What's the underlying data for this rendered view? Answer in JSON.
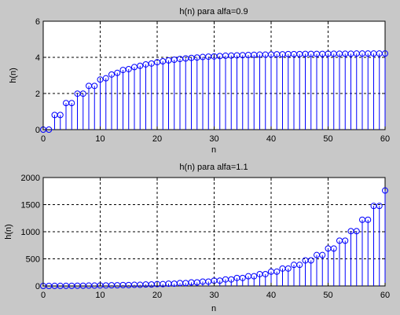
{
  "figure": {
    "background": "#c8c8c8"
  },
  "chart_data": [
    {
      "type": "stem",
      "title": "h(n) para alfa=0.9",
      "xlabel": "n",
      "ylabel": "h(n)",
      "xlim": [
        0,
        60
      ],
      "ylim": [
        0,
        6
      ],
      "xticks": [
        0,
        10,
        20,
        30,
        40,
        50,
        60
      ],
      "yticks": [
        0,
        2,
        4,
        6
      ],
      "grid": true,
      "color": "#0000ff",
      "x": [
        0,
        1,
        2,
        3,
        4,
        5,
        6,
        7,
        8,
        9,
        10,
        11,
        12,
        13,
        14,
        15,
        16,
        17,
        18,
        19,
        20,
        21,
        22,
        23,
        24,
        25,
        26,
        27,
        28,
        29,
        30,
        31,
        32,
        33,
        34,
        35,
        36,
        37,
        38,
        39,
        40,
        41,
        42,
        43,
        44,
        45,
        46,
        47,
        48,
        49,
        50,
        51,
        52,
        53,
        54,
        55,
        56,
        57,
        58,
        59,
        60
      ],
      "y": [
        0,
        0,
        0.81,
        0.81,
        1.47,
        1.47,
        1.99,
        1.99,
        2.42,
        2.42,
        2.77,
        2.84,
        3.05,
        3.14,
        3.3,
        3.35,
        3.46,
        3.53,
        3.61,
        3.66,
        3.73,
        3.78,
        3.83,
        3.87,
        3.91,
        3.94,
        3.97,
        3.99,
        4.02,
        4.04,
        4.05,
        4.07,
        4.09,
        4.1,
        4.11,
        4.12,
        4.13,
        4.14,
        4.15,
        4.15,
        4.16,
        4.17,
        4.17,
        4.18,
        4.18,
        4.18,
        4.19,
        4.19,
        4.19,
        4.19,
        4.2,
        4.2,
        4.2,
        4.2,
        4.2,
        4.21,
        4.21,
        4.21,
        4.21,
        4.21,
        4.21
      ]
    },
    {
      "type": "stem",
      "title": "h(n) para alfa=1.1",
      "xlabel": "n",
      "ylabel": "h(n)",
      "xlim": [
        0,
        60
      ],
      "ylim": [
        0,
        2000
      ],
      "xticks": [
        0,
        10,
        20,
        30,
        40,
        50,
        60
      ],
      "yticks": [
        0,
        500,
        1000,
        1500,
        2000
      ],
      "grid": true,
      "color": "#0000ff",
      "x": [
        0,
        1,
        2,
        3,
        4,
        5,
        6,
        7,
        8,
        9,
        10,
        11,
        12,
        13,
        14,
        15,
        16,
        17,
        18,
        19,
        20,
        21,
        22,
        23,
        24,
        25,
        26,
        27,
        28,
        29,
        30,
        31,
        32,
        33,
        34,
        35,
        36,
        37,
        38,
        39,
        40,
        41,
        42,
        43,
        44,
        45,
        46,
        47,
        48,
        49,
        50,
        51,
        52,
        53,
        54,
        55,
        56,
        57,
        58,
        59,
        60
      ],
      "y": [
        0,
        0,
        1.2,
        1.2,
        2.7,
        2.7,
        4.5,
        4.5,
        6.7,
        6.7,
        9.4,
        9.4,
        12.6,
        12.6,
        16.5,
        16.5,
        21.3,
        21.3,
        27,
        27,
        34,
        34,
        42,
        42,
        53,
        53,
        65,
        65,
        80,
        80,
        98,
        98,
        120,
        120,
        147,
        147,
        179,
        179,
        218,
        218,
        264,
        264,
        321,
        321,
        389,
        389,
        471,
        471,
        570,
        570,
        690,
        690,
        835,
        835,
        1010,
        1010,
        1221,
        1221,
        1476,
        1476,
        1760
      ]
    }
  ]
}
